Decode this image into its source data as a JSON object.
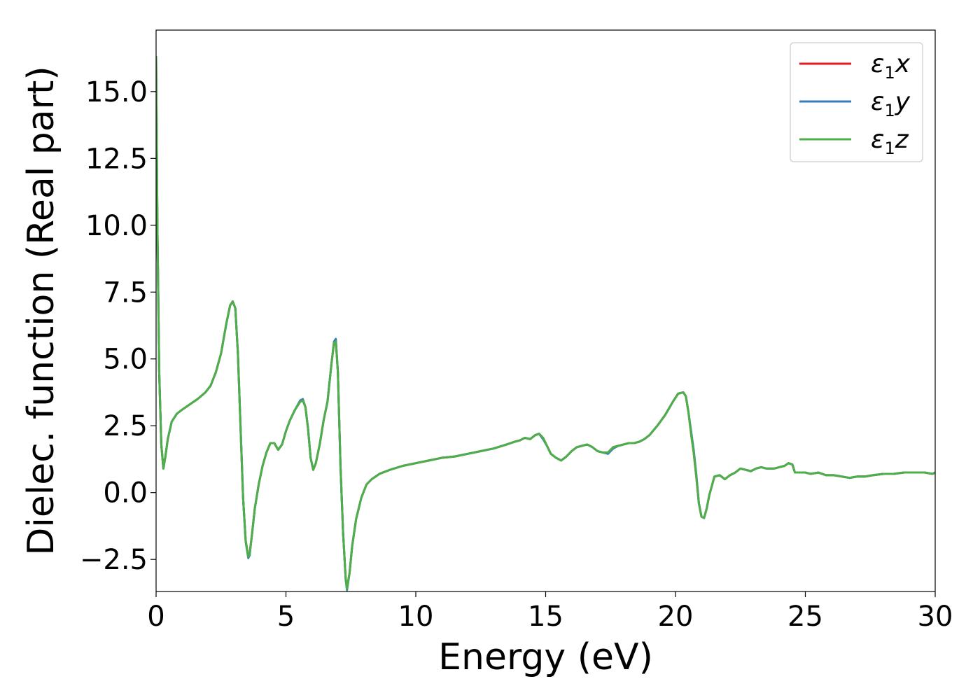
{
  "chart_data": {
    "type": "line",
    "xlabel": "Energy (eV)",
    "ylabel": "Dielec. function (Real part)",
    "xlim": [
      0,
      30
    ],
    "ylim": [
      -3.7,
      17.3
    ],
    "xticks": [
      0,
      5,
      10,
      15,
      20,
      25,
      30
    ],
    "xtick_labels": [
      "0",
      "5",
      "10",
      "15",
      "20",
      "25",
      "30"
    ],
    "yticks": [
      -2.5,
      0.0,
      2.5,
      5.0,
      7.5,
      10.0,
      12.5,
      15.0
    ],
    "ytick_labels": [
      "−2.5",
      "0.0",
      "2.5",
      "5.0",
      "7.5",
      "10.0",
      "12.5",
      "15.0"
    ],
    "grid": false,
    "legend_position": "top-right",
    "series": [
      {
        "name": "ε₁x",
        "name_base": "ε",
        "name_sub": "1",
        "name_var": "x",
        "color": "#e41a1c",
        "x": [
          0,
          0.05,
          0.12,
          0.2,
          0.28,
          0.35,
          0.45,
          0.6,
          0.8,
          1.0,
          1.3,
          1.6,
          1.9,
          2.1,
          2.3,
          2.5,
          2.7,
          2.85,
          2.95,
          3.05,
          3.15,
          3.25,
          3.35,
          3.45,
          3.55,
          3.6,
          3.7,
          3.8,
          3.95,
          4.1,
          4.25,
          4.4,
          4.55,
          4.7,
          4.85,
          5.0,
          5.15,
          5.35,
          5.55,
          5.65,
          5.75,
          5.85,
          5.95,
          6.05,
          6.15,
          6.3,
          6.45,
          6.6,
          6.75,
          6.85,
          6.92,
          7.0,
          7.1,
          7.2,
          7.3,
          7.35,
          7.45,
          7.55,
          7.7,
          7.9,
          8.1,
          8.3,
          8.6,
          9.0,
          9.5,
          10.0,
          10.5,
          11.0,
          11.5,
          12.0,
          12.5,
          13.0,
          13.5,
          13.8,
          14.0,
          14.2,
          14.4,
          14.6,
          14.75,
          14.9,
          15.05,
          15.2,
          15.4,
          15.6,
          15.8,
          16.0,
          16.2,
          16.4,
          16.6,
          16.8,
          17.0,
          17.2,
          17.4,
          17.6,
          17.8,
          18.0,
          18.2,
          18.4,
          18.6,
          18.8,
          19.0,
          19.3,
          19.6,
          19.9,
          20.1,
          20.3,
          20.4,
          20.5,
          20.6,
          20.7,
          20.8,
          20.9,
          21.0,
          21.1,
          21.2,
          21.3,
          21.5,
          21.7,
          21.9,
          22.1,
          22.3,
          22.5,
          22.7,
          22.9,
          23.1,
          23.3,
          23.5,
          23.8,
          24.0,
          24.2,
          24.35,
          24.5,
          24.6,
          24.8,
          25.0,
          25.2,
          25.5,
          25.8,
          26.1,
          26.4,
          26.7,
          27.0,
          27.3,
          27.6,
          28.0,
          28.4,
          28.8,
          29.2,
          29.6,
          29.9,
          30.0
        ],
        "y": [
          16.3,
          10.0,
          4.5,
          1.8,
          0.9,
          1.3,
          2.0,
          2.65,
          2.95,
          3.1,
          3.3,
          3.5,
          3.75,
          4.0,
          4.5,
          5.2,
          6.3,
          7.0,
          7.15,
          6.9,
          5.2,
          2.5,
          -0.2,
          -1.8,
          -2.4,
          -2.3,
          -1.5,
          -0.6,
          0.3,
          1.0,
          1.5,
          1.85,
          1.85,
          1.6,
          1.8,
          2.3,
          2.7,
          3.1,
          3.4,
          3.45,
          3.2,
          2.4,
          1.3,
          0.85,
          1.1,
          1.8,
          2.7,
          3.4,
          4.8,
          5.6,
          5.7,
          4.5,
          1.0,
          -1.5,
          -3.2,
          -3.6,
          -3.0,
          -2.0,
          -1.0,
          -0.2,
          0.3,
          0.5,
          0.7,
          0.85,
          1.0,
          1.1,
          1.2,
          1.3,
          1.35,
          1.45,
          1.55,
          1.65,
          1.8,
          1.9,
          1.95,
          2.05,
          2.0,
          2.15,
          2.2,
          2.05,
          1.75,
          1.45,
          1.3,
          1.2,
          1.35,
          1.55,
          1.7,
          1.75,
          1.8,
          1.7,
          1.55,
          1.5,
          1.5,
          1.7,
          1.75,
          1.8,
          1.85,
          1.85,
          1.9,
          2.0,
          2.15,
          2.5,
          2.9,
          3.4,
          3.7,
          3.75,
          3.6,
          3.0,
          2.2,
          1.5,
          0.6,
          -0.4,
          -0.9,
          -0.95,
          -0.6,
          -0.1,
          0.6,
          0.65,
          0.5,
          0.65,
          0.75,
          0.9,
          0.85,
          0.8,
          0.9,
          0.95,
          0.9,
          0.9,
          0.95,
          1.0,
          1.1,
          1.05,
          0.75,
          0.75,
          0.75,
          0.7,
          0.75,
          0.65,
          0.65,
          0.6,
          0.55,
          0.6,
          0.6,
          0.65,
          0.7,
          0.7,
          0.75,
          0.75,
          0.75,
          0.7,
          0.75
        ]
      },
      {
        "name": "ε₁y",
        "name_base": "ε",
        "name_sub": "1",
        "name_var": "y",
        "color": "#377eb8",
        "x": [
          0,
          0.05,
          0.12,
          0.2,
          0.28,
          0.35,
          0.45,
          0.6,
          0.8,
          1.0,
          1.3,
          1.6,
          1.9,
          2.1,
          2.3,
          2.5,
          2.7,
          2.85,
          2.95,
          3.05,
          3.15,
          3.25,
          3.35,
          3.45,
          3.55,
          3.6,
          3.7,
          3.8,
          3.95,
          4.1,
          4.25,
          4.4,
          4.55,
          4.7,
          4.85,
          5.0,
          5.15,
          5.35,
          5.55,
          5.65,
          5.75,
          5.85,
          5.95,
          6.05,
          6.15,
          6.3,
          6.45,
          6.6,
          6.75,
          6.85,
          6.92,
          7.0,
          7.1,
          7.2,
          7.3,
          7.35,
          7.45,
          7.55,
          7.7,
          7.9,
          8.1,
          8.3,
          8.6,
          9.0,
          9.5,
          10.0,
          10.5,
          11.0,
          11.5,
          12.0,
          12.5,
          13.0,
          13.5,
          13.8,
          14.0,
          14.2,
          14.4,
          14.6,
          14.75,
          14.9,
          15.05,
          15.2,
          15.4,
          15.6,
          15.8,
          16.0,
          16.2,
          16.4,
          16.6,
          16.8,
          17.0,
          17.2,
          17.4,
          17.6,
          17.8,
          18.0,
          18.2,
          18.4,
          18.6,
          18.8,
          19.0,
          19.3,
          19.6,
          19.9,
          20.1,
          20.3,
          20.4,
          20.5,
          20.6,
          20.7,
          20.8,
          20.9,
          21.0,
          21.1,
          21.2,
          21.3,
          21.5,
          21.7,
          21.9,
          22.1,
          22.3,
          22.5,
          22.7,
          22.9,
          23.1,
          23.3,
          23.5,
          23.8,
          24.0,
          24.2,
          24.35,
          24.5,
          24.6,
          24.8,
          25.0,
          25.2,
          25.5,
          25.8,
          26.1,
          26.4,
          26.7,
          27.0,
          27.3,
          27.6,
          28.0,
          28.4,
          28.8,
          29.2,
          29.6,
          29.9,
          30.0
        ],
        "y": [
          16.3,
          10.0,
          4.5,
          1.8,
          0.9,
          1.3,
          2.0,
          2.65,
          2.95,
          3.1,
          3.3,
          3.5,
          3.75,
          4.0,
          4.5,
          5.2,
          6.3,
          7.0,
          7.15,
          6.9,
          5.2,
          2.5,
          -0.2,
          -1.85,
          -2.45,
          -2.35,
          -1.5,
          -0.6,
          0.3,
          1.0,
          1.5,
          1.85,
          1.85,
          1.6,
          1.8,
          2.3,
          2.7,
          3.1,
          3.45,
          3.5,
          3.2,
          2.4,
          1.3,
          0.85,
          1.1,
          1.8,
          2.7,
          3.4,
          4.8,
          5.65,
          5.75,
          4.5,
          1.0,
          -1.5,
          -3.25,
          -3.65,
          -3.0,
          -2.0,
          -1.0,
          -0.2,
          0.3,
          0.5,
          0.7,
          0.85,
          1.0,
          1.1,
          1.2,
          1.3,
          1.35,
          1.45,
          1.55,
          1.65,
          1.8,
          1.9,
          1.95,
          2.05,
          2.0,
          2.15,
          2.2,
          2.0,
          1.75,
          1.45,
          1.3,
          1.2,
          1.35,
          1.55,
          1.7,
          1.75,
          1.8,
          1.7,
          1.55,
          1.5,
          1.45,
          1.65,
          1.75,
          1.8,
          1.85,
          1.85,
          1.9,
          2.0,
          2.15,
          2.5,
          2.9,
          3.4,
          3.7,
          3.75,
          3.6,
          3.0,
          2.3,
          1.6,
          0.7,
          -0.4,
          -0.9,
          -0.95,
          -0.6,
          -0.1,
          0.6,
          0.65,
          0.5,
          0.65,
          0.75,
          0.9,
          0.85,
          0.8,
          0.9,
          0.95,
          0.9,
          0.9,
          0.95,
          1.0,
          1.1,
          1.05,
          0.75,
          0.75,
          0.75,
          0.7,
          0.75,
          0.65,
          0.65,
          0.6,
          0.55,
          0.6,
          0.6,
          0.65,
          0.7,
          0.7,
          0.75,
          0.75,
          0.75,
          0.7,
          0.75
        ]
      },
      {
        "name": "ε₁z",
        "name_base": "ε",
        "name_sub": "1",
        "name_var": "z",
        "color": "#4daf4a",
        "x": [
          0,
          0.05,
          0.12,
          0.2,
          0.28,
          0.35,
          0.45,
          0.6,
          0.8,
          1.0,
          1.3,
          1.6,
          1.9,
          2.1,
          2.3,
          2.5,
          2.7,
          2.85,
          2.95,
          3.05,
          3.15,
          3.25,
          3.35,
          3.45,
          3.55,
          3.6,
          3.7,
          3.8,
          3.95,
          4.1,
          4.25,
          4.4,
          4.55,
          4.7,
          4.85,
          5.0,
          5.15,
          5.35,
          5.55,
          5.65,
          5.75,
          5.85,
          5.95,
          6.05,
          6.15,
          6.3,
          6.45,
          6.6,
          6.75,
          6.85,
          6.92,
          7.0,
          7.1,
          7.2,
          7.3,
          7.35,
          7.45,
          7.55,
          7.7,
          7.9,
          8.1,
          8.3,
          8.6,
          9.0,
          9.5,
          10.0,
          10.5,
          11.0,
          11.5,
          12.0,
          12.5,
          13.0,
          13.5,
          13.8,
          14.0,
          14.2,
          14.4,
          14.6,
          14.75,
          14.9,
          15.05,
          15.2,
          15.4,
          15.6,
          15.8,
          16.0,
          16.2,
          16.4,
          16.6,
          16.8,
          17.0,
          17.2,
          17.4,
          17.6,
          17.8,
          18.0,
          18.2,
          18.4,
          18.6,
          18.8,
          19.0,
          19.3,
          19.6,
          19.9,
          20.1,
          20.3,
          20.4,
          20.5,
          20.6,
          20.7,
          20.8,
          20.9,
          21.0,
          21.1,
          21.2,
          21.3,
          21.5,
          21.7,
          21.9,
          22.1,
          22.3,
          22.5,
          22.7,
          22.9,
          23.1,
          23.3,
          23.5,
          23.8,
          24.0,
          24.2,
          24.35,
          24.5,
          24.6,
          24.8,
          25.0,
          25.2,
          25.5,
          25.8,
          26.1,
          26.4,
          26.7,
          27.0,
          27.3,
          27.6,
          28.0,
          28.4,
          28.8,
          29.2,
          29.6,
          29.9,
          30.0
        ],
        "y": [
          16.3,
          10.0,
          4.5,
          1.8,
          0.9,
          1.3,
          2.0,
          2.65,
          2.95,
          3.1,
          3.3,
          3.5,
          3.75,
          4.0,
          4.5,
          5.2,
          6.3,
          7.0,
          7.15,
          6.9,
          5.2,
          2.5,
          -0.2,
          -1.8,
          -2.4,
          -2.3,
          -1.5,
          -0.6,
          0.3,
          1.0,
          1.5,
          1.85,
          1.85,
          1.6,
          1.8,
          2.3,
          2.7,
          3.1,
          3.4,
          3.45,
          3.2,
          2.4,
          1.3,
          0.85,
          1.1,
          1.8,
          2.7,
          3.4,
          4.8,
          5.6,
          5.65,
          4.5,
          1.0,
          -1.5,
          -3.2,
          -3.6,
          -3.0,
          -2.0,
          -1.0,
          -0.2,
          0.3,
          0.5,
          0.7,
          0.85,
          1.0,
          1.1,
          1.2,
          1.3,
          1.35,
          1.45,
          1.55,
          1.65,
          1.8,
          1.9,
          1.95,
          2.05,
          2.0,
          2.15,
          2.2,
          2.05,
          1.75,
          1.45,
          1.3,
          1.2,
          1.35,
          1.55,
          1.7,
          1.75,
          1.8,
          1.7,
          1.55,
          1.5,
          1.5,
          1.7,
          1.75,
          1.8,
          1.85,
          1.85,
          1.9,
          2.0,
          2.15,
          2.5,
          2.9,
          3.4,
          3.7,
          3.75,
          3.6,
          3.0,
          2.2,
          1.5,
          0.6,
          -0.4,
          -0.9,
          -0.95,
          -0.6,
          -0.1,
          0.6,
          0.65,
          0.5,
          0.65,
          0.75,
          0.9,
          0.85,
          0.8,
          0.9,
          0.95,
          0.9,
          0.9,
          0.95,
          1.0,
          1.1,
          1.05,
          0.75,
          0.75,
          0.75,
          0.7,
          0.75,
          0.65,
          0.65,
          0.6,
          0.55,
          0.6,
          0.6,
          0.65,
          0.7,
          0.7,
          0.75,
          0.75,
          0.75,
          0.7,
          0.75
        ]
      }
    ]
  }
}
